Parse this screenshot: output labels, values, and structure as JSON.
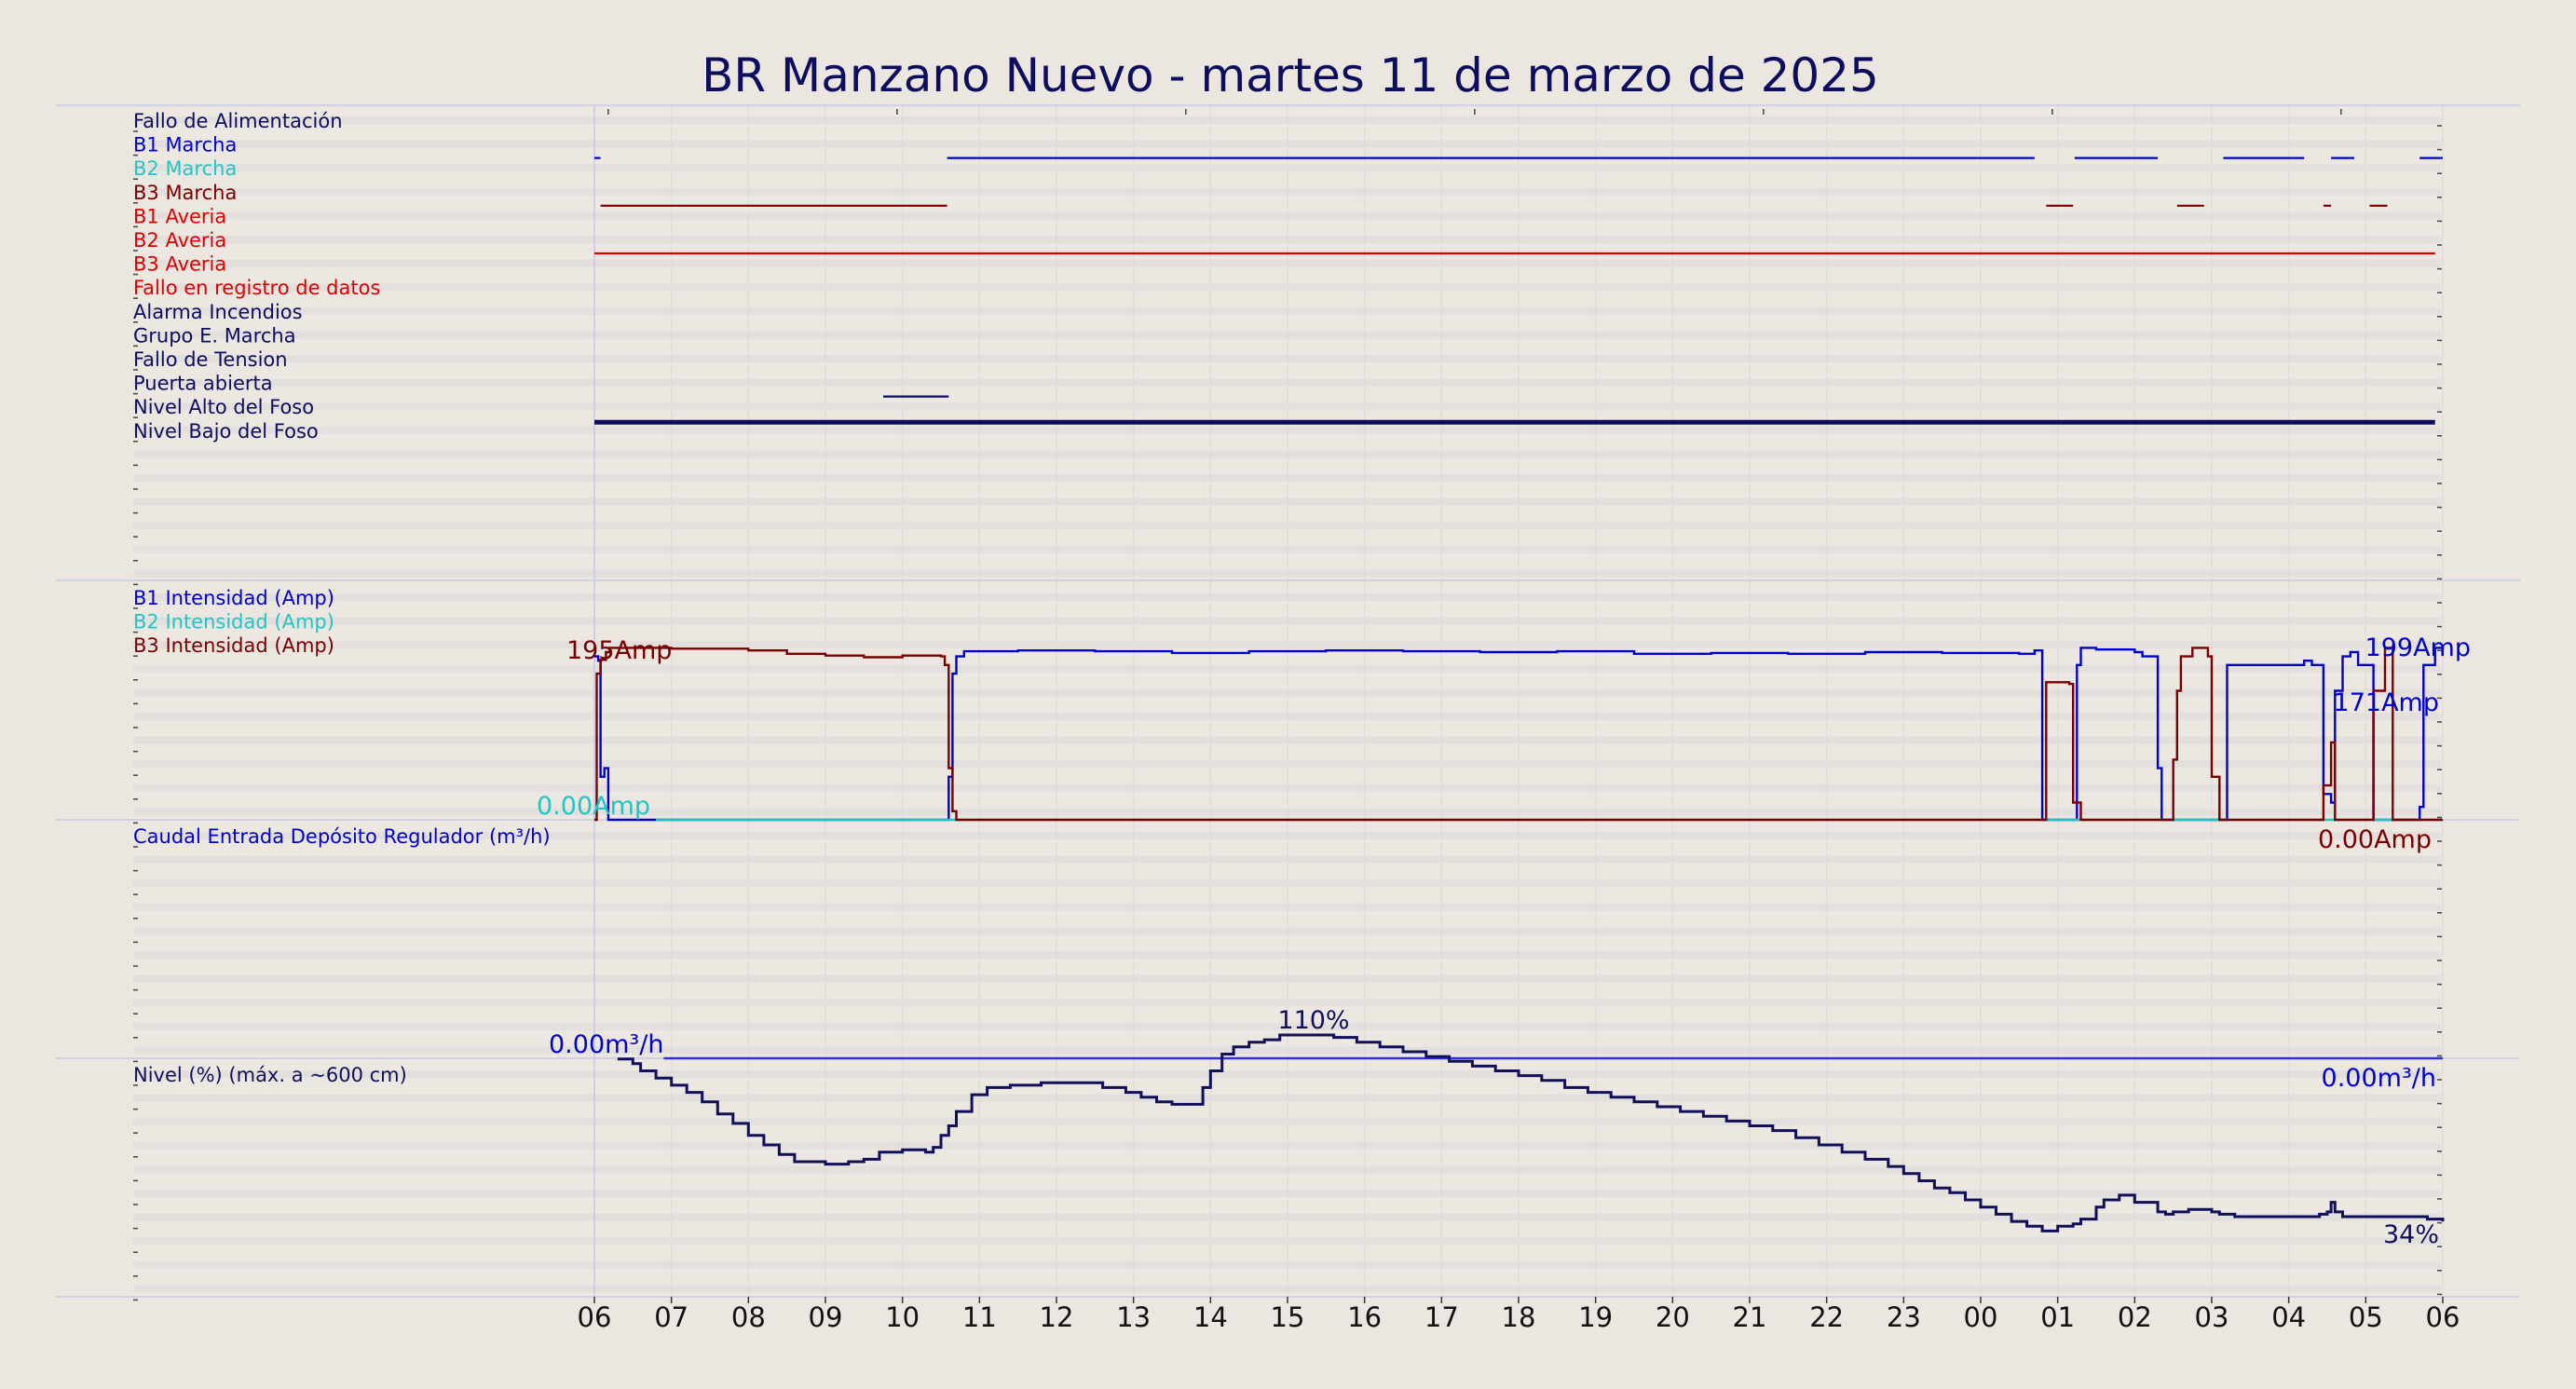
{
  "title": "BR Manzano Nuevo   -   martes 11 de marzo de 2025",
  "colors": {
    "background": "#ebe6e0",
    "navy": "#0d0d60",
    "blue": "#0000cc",
    "cyan": "#22c4c4",
    "maroon": "#7a0000",
    "red": "#dd0000",
    "level": "#10105a",
    "grid": "#ddd8d8"
  },
  "chart_data": {
    "type": "line",
    "x_axis": {
      "unit": "hour",
      "start_hour": 6,
      "end_hour": 30,
      "tick_labels": [
        "06",
        "07",
        "08",
        "09",
        "10",
        "11",
        "12",
        "13",
        "14",
        "15",
        "16",
        "17",
        "18",
        "19",
        "20",
        "21",
        "22",
        "23",
        "00",
        "01",
        "02",
        "03",
        "04",
        "05",
        "06"
      ]
    },
    "panels": [
      {
        "type": "timeline",
        "signals": [
          {
            "label": "Fallo de Alimentación",
            "color": "#0d0d60",
            "segments": []
          },
          {
            "label": "B1 Marcha",
            "color": "#0000cc",
            "segments": [
              [
                6.0,
                6.08
              ],
              [
                10.58,
                24.7
              ],
              [
                25.22,
                26.3
              ],
              [
                27.15,
                28.2
              ],
              [
                28.55,
                28.85
              ],
              [
                29.7,
                30.0
              ]
            ]
          },
          {
            "label": "B2 Marcha",
            "color": "#22c4c4",
            "segments": []
          },
          {
            "label": "B3 Marcha",
            "color": "#7a0000",
            "segments": [
              [
                6.08,
                10.58
              ],
              [
                24.85,
                25.2
              ],
              [
                26.55,
                26.9
              ],
              [
                28.45,
                28.55
              ],
              [
                29.05,
                29.28
              ]
            ]
          },
          {
            "label": "B1 Averia",
            "color": "#dd0000",
            "segments": []
          },
          {
            "label": "B2 Averia",
            "color": "#dd0000",
            "segments": [
              [
                6.0,
                29.9
              ]
            ]
          },
          {
            "label": "B3 Averia",
            "color": "#dd0000",
            "segments": []
          },
          {
            "label": "Fallo en registro de datos",
            "color": "#dd0000",
            "segments": []
          },
          {
            "label": "Alarma Incendios",
            "color": "#0d0d60",
            "segments": []
          },
          {
            "label": "Grupo E. Marcha",
            "color": "#0d0d60",
            "segments": []
          },
          {
            "label": "Fallo de Tension",
            "color": "#0d0d60",
            "segments": []
          },
          {
            "label": "Puerta abierta",
            "color": "#0d0d60",
            "segments": [
              [
                9.75,
                10.6
              ]
            ]
          },
          {
            "label": "Nivel Alto del Foso",
            "color": "#0d0d60",
            "segments": [
              [
                6.0,
                29.9
              ]
            ],
            "thick": true
          },
          {
            "label": "Nivel Bajo del Foso",
            "color": "#0d0d60",
            "segments": []
          }
        ]
      },
      {
        "type": "line",
        "ylim": [
          0,
          240
        ],
        "series": [
          {
            "name": "B1 Intensidad (Amp)",
            "color": "#0000cc",
            "step": true,
            "x": [
              6.0,
              6.05,
              6.08,
              6.13,
              6.18,
              10.55,
              10.6,
              10.65,
              10.7,
              10.8,
              11.5,
              12.5,
              13.5,
              14.5,
              15.5,
              16.5,
              17.5,
              18.5,
              19.5,
              20.5,
              21.5,
              22.5,
              23.5,
              24.5,
              24.7,
              24.8,
              24.85,
              25.2,
              25.25,
              25.3,
              25.5,
              26.0,
              26.1,
              26.3,
              26.35,
              26.9,
              27.1,
              27.15,
              27.2,
              28.2,
              28.3,
              28.45,
              28.55,
              28.6,
              28.7,
              28.8,
              28.9,
              29.1,
              29.3,
              29.55,
              29.7,
              29.75,
              29.9,
              30.0
            ],
            "y": [
              190,
              185,
              50,
              60,
              0,
              0,
              50,
              170,
              190,
              196,
              197,
              196,
              194,
              196,
              197,
              196,
              195,
              196,
              193,
              194,
              193,
              195,
              194,
              193,
              197,
              0,
              0,
              0,
              180,
              200,
              198,
              195,
              190,
              60,
              0,
              0,
              0,
              0,
              180,
              185,
              180,
              30,
              20,
              150,
              190,
              195,
              180,
              0,
              0,
              0,
              15,
              180,
              200,
              198
            ]
          },
          {
            "name": "B2 Intensidad (Amp)",
            "color": "#22c4c4",
            "step": true,
            "x": [
              6.8,
              30.0
            ],
            "y": [
              0,
              0
            ]
          },
          {
            "name": "B3 Intensidad (Amp)",
            "color": "#7a0000",
            "step": true,
            "x": [
              6.0,
              6.03,
              6.08,
              6.15,
              6.2,
              7.0,
              8.0,
              8.5,
              9.0,
              9.5,
              10.0,
              10.5,
              10.55,
              10.6,
              10.65,
              10.7,
              24.7,
              24.85,
              25.15,
              25.2,
              25.3,
              26.4,
              26.5,
              26.55,
              26.6,
              26.75,
              26.95,
              27.0,
              27.1,
              28.35,
              28.45,
              28.55,
              28.6,
              29.0,
              29.1,
              29.25,
              29.35,
              30.0
            ],
            "y": [
              0,
              170,
              186,
              195,
              200,
              199,
              197,
              193,
              191,
              189,
              191,
              190,
              180,
              60,
              10,
              0,
              0,
              160,
              158,
              20,
              0,
              0,
              70,
              150,
              190,
              200,
              190,
              50,
              0,
              0,
              40,
              90,
              0,
              0,
              150,
              200,
              0,
              0
            ]
          }
        ],
        "annotations": [
          {
            "text": "195Amp",
            "color": "#7a0000"
          },
          {
            "text": "0.00Amp",
            "color": "#22c4c4"
          },
          {
            "text": "199Amp",
            "color": "#0000cc"
          },
          {
            "text": "171Amp",
            "color": "#0000cc"
          },
          {
            "text": "0.00Amp",
            "color": "#7a0000"
          }
        ]
      },
      {
        "type": "line",
        "ylim": [
          0,
          10
        ],
        "series": [
          {
            "name": "Caudal Entrada Depósito Regulador (m³/h)",
            "color": "#0000cc",
            "x": [
              6.9,
              30.0
            ],
            "y": [
              0,
              0
            ]
          }
        ],
        "annotations": [
          {
            "text": "0.00m³/h",
            "color": "#0000cc"
          },
          {
            "text": "0.00m³/h",
            "color": "#0000cc"
          }
        ]
      },
      {
        "type": "line",
        "ylim": [
          0,
          110
        ],
        "series": [
          {
            "name": "Nivel (%) (máx. a ~600 cm)",
            "color": "#10105a",
            "step": true,
            "x": [
              6.3,
              6.5,
              6.6,
              6.8,
              7.0,
              7.2,
              7.4,
              7.6,
              7.8,
              8.0,
              8.2,
              8.4,
              8.6,
              9.0,
              9.3,
              9.5,
              9.7,
              10.0,
              10.3,
              10.4,
              10.5,
              10.6,
              10.7,
              10.9,
              11.1,
              11.4,
              11.8,
              12.2,
              12.6,
              12.9,
              13.1,
              13.3,
              13.5,
              13.8,
              13.9,
              14.0,
              14.15,
              14.3,
              14.5,
              14.7,
              14.9,
              15.3,
              15.6,
              15.9,
              16.2,
              16.5,
              16.8,
              17.1,
              17.4,
              17.7,
              18.0,
              18.3,
              18.6,
              18.9,
              19.2,
              19.5,
              19.8,
              20.1,
              20.4,
              20.7,
              21.0,
              21.3,
              21.6,
              21.9,
              22.2,
              22.5,
              22.8,
              23.0,
              23.2,
              23.4,
              23.6,
              23.8,
              24.0,
              24.2,
              24.4,
              24.6,
              24.8,
              25.0,
              25.2,
              25.3,
              25.5,
              25.6,
              25.8,
              26.0,
              26.3,
              26.4,
              26.5,
              26.7,
              27.0,
              27.1,
              27.3,
              27.6,
              27.9,
              28.2,
              28.4,
              28.5,
              28.55,
              28.6,
              28.7,
              29.1,
              29.5,
              29.8,
              30.0
            ],
            "y": [
              100,
              98,
              95,
              92,
              89,
              86,
              82,
              77,
              73,
              68,
              64,
              60,
              57,
              56,
              57,
              58,
              61,
              62,
              61,
              63,
              68,
              72,
              78,
              85,
              88,
              89,
              90,
              90,
              88,
              86,
              84,
              82,
              81,
              81,
              88,
              95,
              102,
              105,
              107,
              108,
              110,
              110,
              109,
              107,
              105,
              103,
              101,
              99,
              97,
              95,
              93,
              91,
              88,
              86,
              84,
              82,
              80,
              78,
              76,
              74,
              72,
              70,
              67,
              64,
              61,
              58,
              55,
              52,
              49,
              46,
              44,
              41,
              38,
              35,
              32,
              30,
              28,
              30,
              31,
              33,
              38,
              41,
              43,
              40,
              36,
              35,
              36,
              37,
              36,
              35,
              34,
              34,
              34,
              34,
              35,
              36,
              40,
              36,
              34,
              34,
              34,
              33,
              32
            ]
          }
        ],
        "annotations": [
          {
            "text": "110%",
            "color": "#10105a"
          },
          {
            "text": "34%",
            "color": "#10105a"
          }
        ]
      }
    ]
  }
}
